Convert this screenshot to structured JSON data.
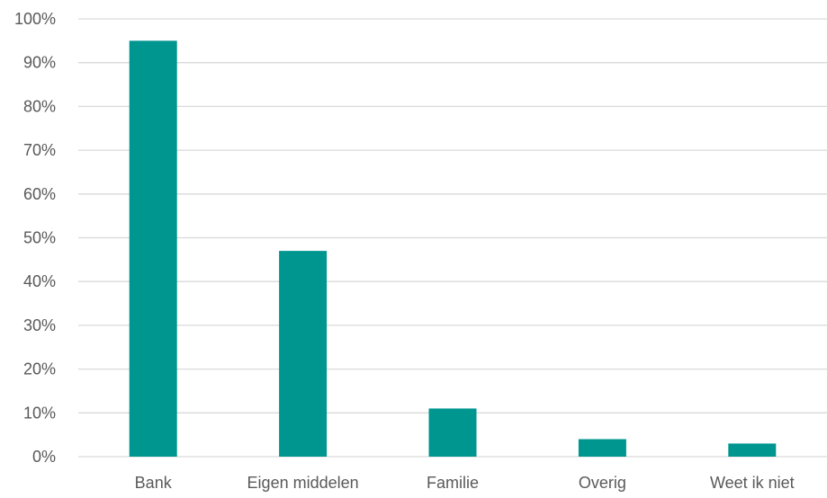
{
  "chart_data": {
    "type": "bar",
    "title": "",
    "xlabel": "",
    "ylabel": "",
    "categories": [
      "Bank",
      "Eigen middelen",
      "Familie",
      "Overig",
      "Weet ik niet"
    ],
    "values": [
      95,
      47,
      11,
      4,
      3
    ],
    "value_format": "percent",
    "ylim": [
      0,
      100
    ],
    "yticks": [
      0,
      10,
      20,
      30,
      40,
      50,
      60,
      70,
      80,
      90,
      100
    ],
    "ytick_labels": [
      "0%",
      "10%",
      "20%",
      "30%",
      "40%",
      "50%",
      "60%",
      "70%",
      "80%",
      "90%",
      "100%"
    ],
    "grid": true,
    "legend": "none",
    "bar_color": "#009690",
    "gridline_color": "#d9d9d9",
    "text_color": "#595959"
  }
}
